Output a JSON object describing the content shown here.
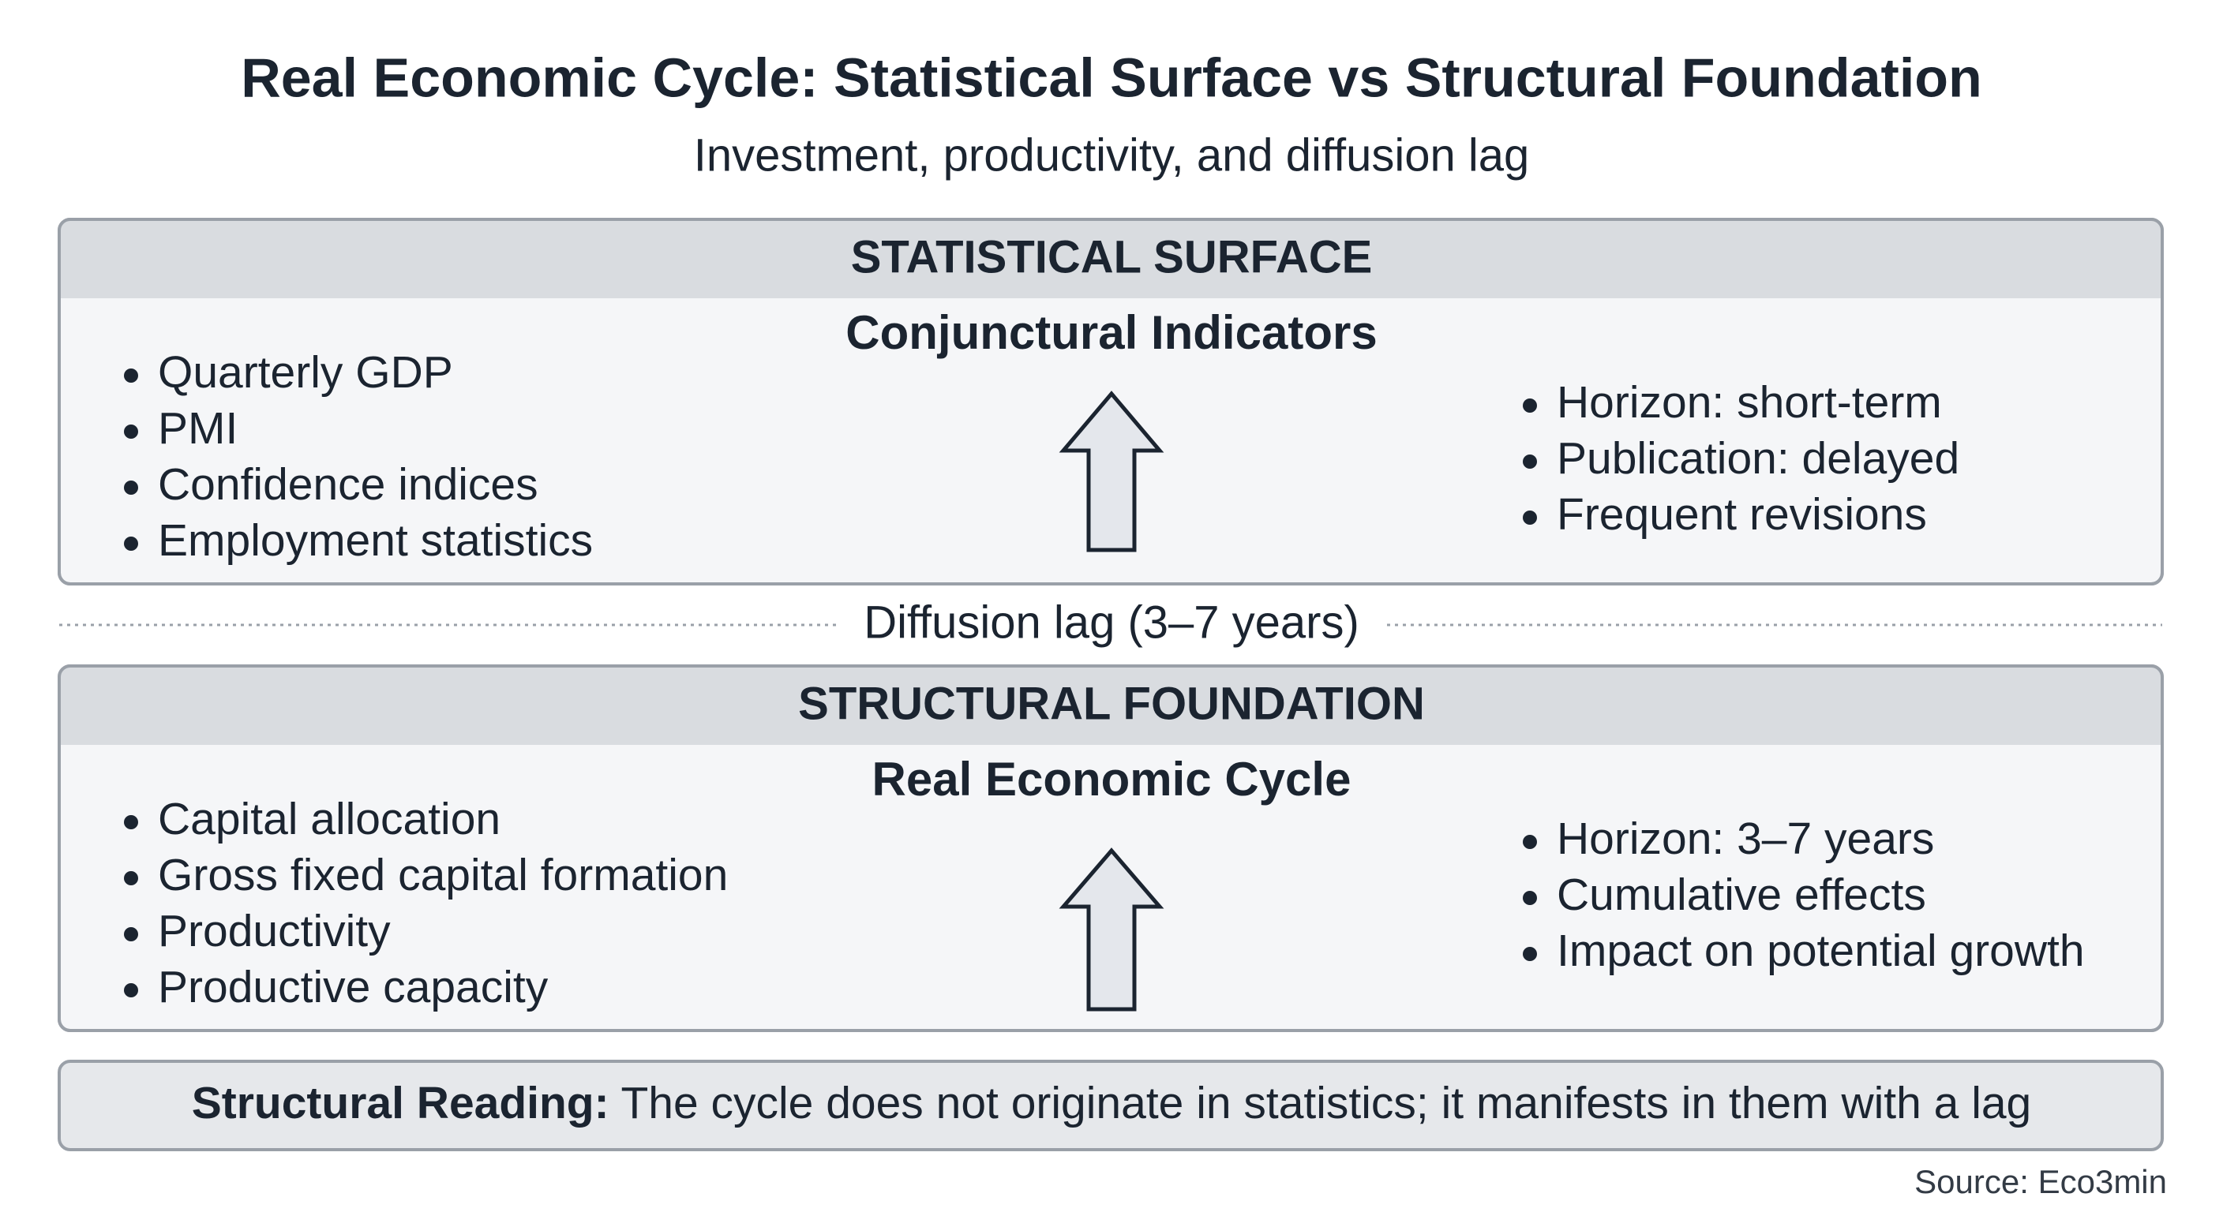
{
  "header": {
    "title": "Real Economic Cycle: Statistical Surface vs Structural Foundation",
    "subtitle": "Investment, productivity, and diffusion lag"
  },
  "sections": [
    {
      "band": "STATISTICAL SURFACE",
      "heading": "Conjunctural Indicators",
      "left_items": [
        "Quarterly GDP",
        "PMI",
        "Confidence indices",
        "Employment statistics"
      ],
      "right_items": [
        "Horizon: short-term",
        "Publication: delayed",
        "Frequent revisions"
      ]
    },
    {
      "band": "STRUCTURAL FOUNDATION",
      "heading": "Real Economic Cycle",
      "left_items": [
        "Capital allocation",
        "Gross fixed capital formation",
        "Productivity",
        "Productive capacity"
      ],
      "right_items": [
        "Horizon: 3–7 years",
        "Cumulative effects",
        "Impact on potential growth"
      ]
    }
  ],
  "divider": "Diffusion lag (3–7 years)",
  "reading": {
    "label": "Structural Reading:",
    "text": "The cycle does not originate in statistics; it manifests in them with a lag"
  },
  "source": "Source: Eco3min"
}
